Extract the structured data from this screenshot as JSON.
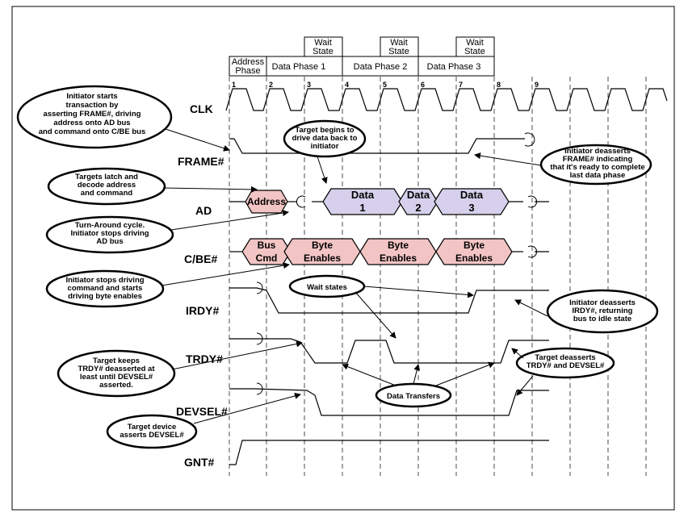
{
  "phases": {
    "address": "Address\nPhase",
    "data1": "Data Phase 1",
    "data2": "Data Phase 2",
    "data3": "Data Phase 3",
    "wait": "Wait\nState"
  },
  "clock_numbers": [
    "1",
    "2",
    "3",
    "4",
    "5",
    "6",
    "7",
    "8",
    "9"
  ],
  "signals": {
    "clk": "CLK",
    "frame": "FRAME#",
    "ad": "AD",
    "cbe": "C/BE#",
    "irdy": "IRDY#",
    "trdy": "TRDY#",
    "devsel": "DEVSEL#",
    "gnt": "GNT#"
  },
  "bus": {
    "address": "Address",
    "data1": "Data\n1",
    "data2": "Data\n2",
    "data3": "Data\n3",
    "bus_cmd": "Bus\nCmd",
    "byte_enables": "Byte\nEnables"
  },
  "callouts": {
    "initiator_starts": "Initiator starts\ntransaction by\nasserting FRAME#, driving\naddress onto AD bus\nand command onto C/BE bus",
    "target_begins": "Target begins to\ndrive data back to\ninitiator",
    "initiator_deasserts_frame": "Initiator deasserts\nFRAME# indicating\nthat it's ready to complete\nlast data phase",
    "targets_latch": "Targets latch and\ndecode address\nand command",
    "turn_around": "Turn-Around cycle.\nInitiator stops driving\nAD bus",
    "initiator_stops_cmd": "Initiator stops driving\ncommand and starts\ndriving byte enables",
    "wait_states": "Wait states",
    "initiator_deasserts_irdy": "Initiator deasserts\nIRDY#, returning\nbus to idle state",
    "target_keeps_trdy": "Target keeps\nTRDY# deasserted at\nleast until DEVSEL#\nasserted.",
    "target_deasserts": "Target deasserts\nTRDY# and DEVSEL#",
    "data_transfers": "Data Transfers",
    "target_asserts_devsel": "Target device\nasserts DEVSEL#"
  },
  "colors": {
    "address_fill": "#f2c4c4",
    "data_fill": "#d6d0ec",
    "line": "#000000"
  }
}
